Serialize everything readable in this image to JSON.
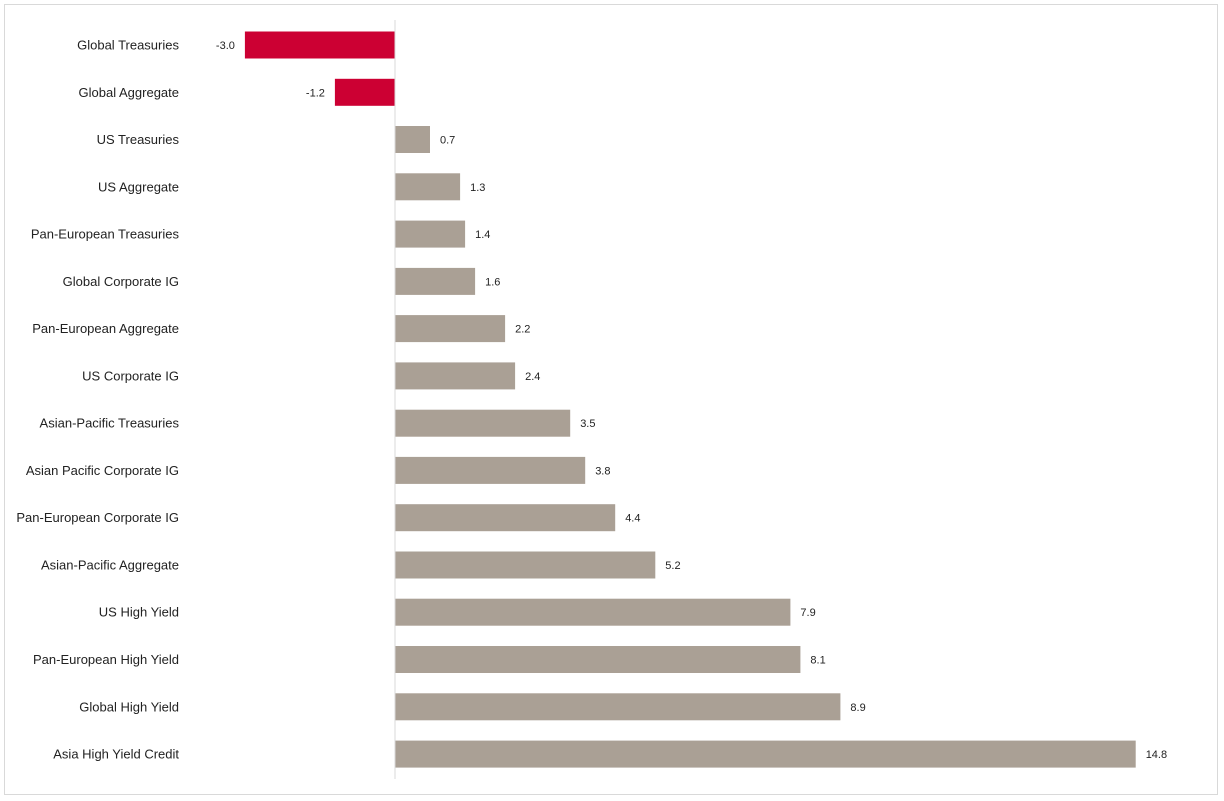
{
  "chart_data": {
    "type": "bar",
    "orientation": "horizontal",
    "title": "",
    "xlabel": "",
    "ylabel": "",
    "categories": [
      "Global Treasuries",
      "Global Aggregate",
      "US Treasuries",
      "US Aggregate",
      "Pan-European Treasuries",
      "Global Corporate IG",
      "Pan-European Aggregate",
      "US Corporate IG",
      "Asian-Pacific Treasuries",
      "Asian Pacific Corporate IG",
      "Pan-European Corporate IG",
      "Asian-Pacific Aggregate",
      "US High Yield",
      "Pan-European High Yield",
      "Global High Yield",
      "Asia High Yield Credit"
    ],
    "values": [
      -3.0,
      -1.2,
      0.7,
      1.3,
      1.4,
      1.6,
      2.2,
      2.4,
      3.5,
      3.8,
      4.4,
      5.2,
      7.9,
      8.1,
      8.9,
      14.8
    ],
    "value_labels": [
      "-3.0",
      "-1.2",
      "0.7",
      "1.3",
      "1.4",
      "1.6",
      "2.2",
      "2.4",
      "3.5",
      "3.8",
      "4.4",
      "5.2",
      "7.9",
      "8.1",
      "8.9",
      "14.8"
    ],
    "xlim": [
      -4.5,
      16.0
    ],
    "grid": false,
    "legend": "none",
    "colors": {
      "positive": "#aaa095",
      "negative": "#cc0033",
      "axis": "#d9d9d9",
      "border": "#d9d9d9"
    }
  }
}
